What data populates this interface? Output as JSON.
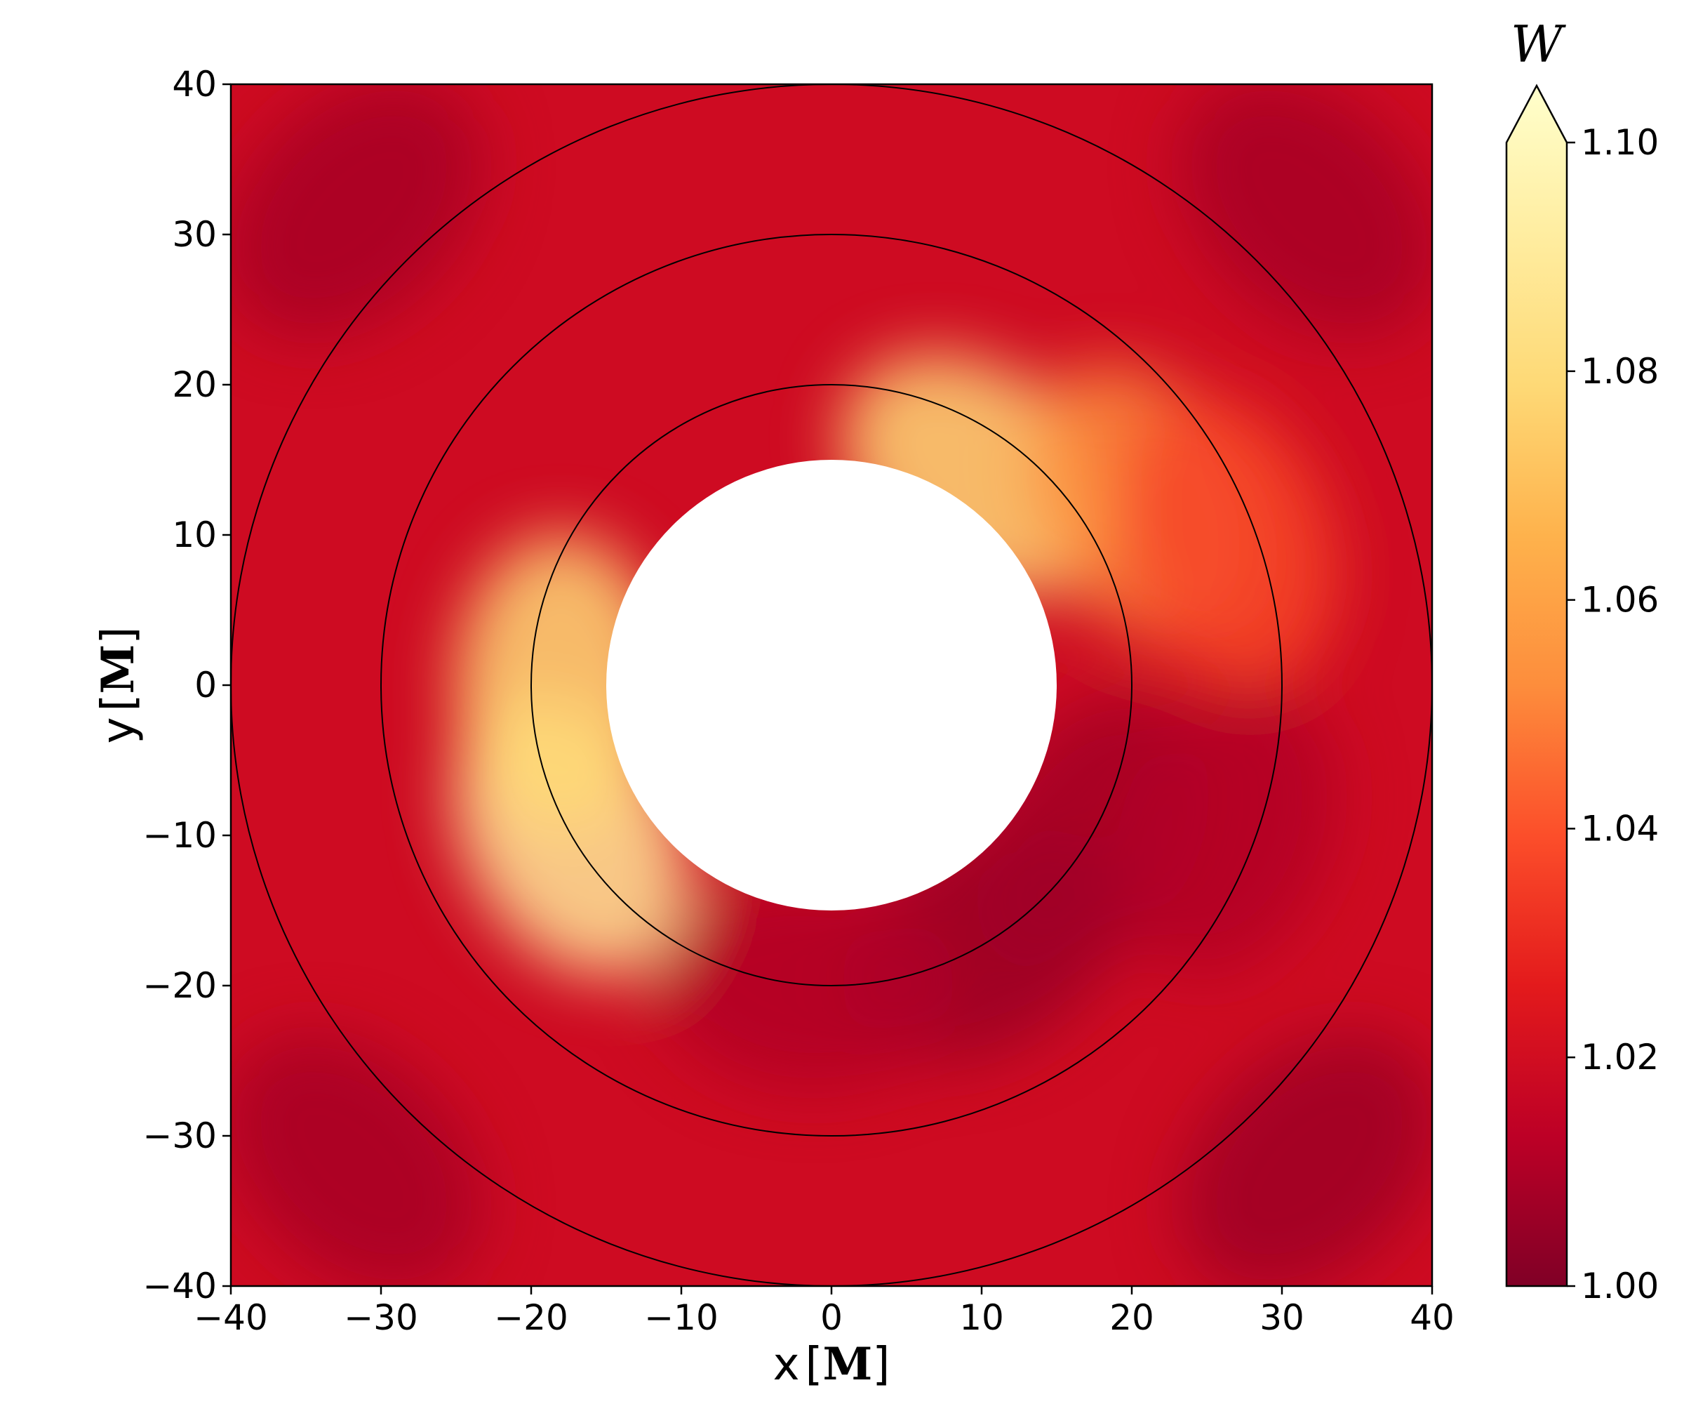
{
  "chart_data": {
    "type": "heatmap",
    "title": "",
    "xlabel": "x",
    "ylabel": "y",
    "x_unit": "M",
    "y_unit": "M",
    "xlim": [
      -40,
      40
    ],
    "ylim": [
      -40,
      40
    ],
    "xticks": [
      -40,
      -30,
      -20,
      -10,
      0,
      10,
      20,
      30,
      40
    ],
    "yticks": [
      -40,
      -30,
      -20,
      -10,
      0,
      10,
      20,
      30,
      40
    ],
    "xtick_labels": [
      "−40",
      "−30",
      "−20",
      "−10",
      "0",
      "10",
      "20",
      "30",
      "40"
    ],
    "ytick_labels": [
      "−40",
      "−30",
      "−20",
      "−10",
      "0",
      "10",
      "20",
      "30",
      "40"
    ],
    "grid": false,
    "colormap": "YlOrRd_r",
    "colorbar": {
      "label": "W",
      "vmin": 1.0,
      "vmax": 1.1,
      "extend": "max",
      "ticks": [
        1.0,
        1.02,
        1.04,
        1.06,
        1.08,
        1.1
      ],
      "tick_labels": [
        "1.00",
        "1.02",
        "1.04",
        "1.06",
        "1.08",
        "1.10"
      ]
    },
    "excised_region_radius": 15,
    "circle_radii": [
      20,
      30,
      40
    ],
    "field_features": [
      {
        "r": 20,
        "angle_deg": 210,
        "W": 1.085
      },
      {
        "r": 18,
        "angle_deg": 180,
        "W": 1.075
      },
      {
        "r": 17,
        "angle_deg": 55,
        "W": 1.075
      },
      {
        "r": 24,
        "angle_deg": 30,
        "W": 1.05
      },
      {
        "r": 20,
        "angle_deg": 300,
        "W": 1.005
      },
      {
        "r": 20,
        "angle_deg": 330,
        "W": 1.007
      },
      {
        "r": 20,
        "angle_deg": 265,
        "W": 1.01
      },
      {
        "r": 28,
        "angle_deg": 340,
        "W": 1.01
      },
      {
        "r": 28,
        "angle_deg": 20,
        "W": 1.035
      },
      {
        "r": 45,
        "angle_deg": 45,
        "W": 1.008
      },
      {
        "r": 45,
        "angle_deg": 135,
        "W": 1.008
      },
      {
        "r": 45,
        "angle_deg": 225,
        "W": 1.008
      },
      {
        "r": 45,
        "angle_deg": 315,
        "W": 1.006
      }
    ],
    "background_W": 1.018
  },
  "colors": {
    "cmap_stops": [
      "#800026",
      "#bd0026",
      "#e31a1c",
      "#fc4e2a",
      "#fd8d3c",
      "#feb24c",
      "#fed976",
      "#ffeda0",
      "#ffffcc"
    ],
    "circle_stroke": "#000000",
    "excised_fill": "#ffffff"
  }
}
